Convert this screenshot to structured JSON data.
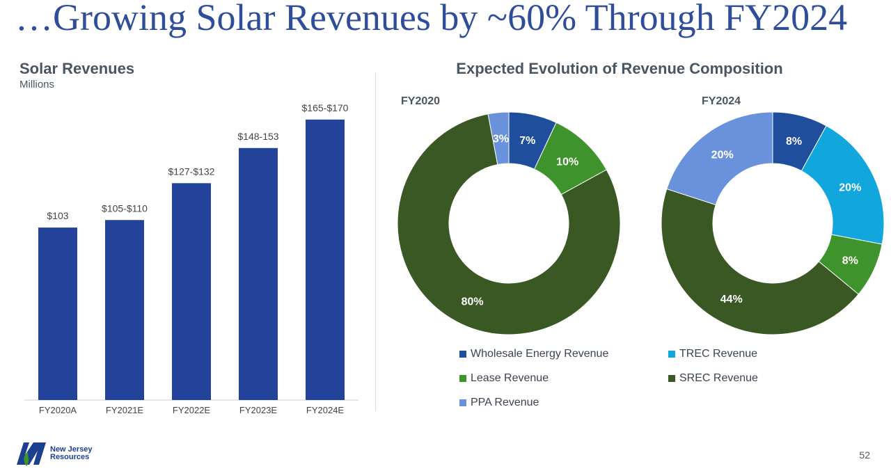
{
  "slide": {
    "title": "…Growing Solar Revenues by ~60% Through FY2024",
    "page_number": "52",
    "logo": {
      "line1": "New Jersey",
      "line2": "Resources"
    }
  },
  "colors": {
    "bar": "#23439a",
    "wholesale": "#1f4e9c",
    "trec": "#12a7dc",
    "lease": "#3f932c",
    "srec": "#3a5823",
    "ppa": "#6a92dc"
  },
  "chart_data": [
    {
      "type": "bar",
      "title": "Solar Revenues",
      "subtitle": "Millions",
      "categories": [
        "FY2020A",
        "FY2021E",
        "FY2022E",
        "FY2023E",
        "FY2024E"
      ],
      "values": [
        103,
        107.5,
        129.5,
        150.5,
        167.5
      ],
      "data_labels": [
        "$103",
        "$105-$110",
        "$127-$132",
        "$148-153",
        "$165-$170"
      ],
      "ylim": [
        0,
        175
      ],
      "grid": false
    },
    {
      "type": "pie",
      "variant": "donut",
      "title": "Expected Evolution of Revenue Composition",
      "chart_label": "FY2020",
      "slices": [
        {
          "name": "Wholesale Energy Revenue",
          "value": 7,
          "label": "7%",
          "color_key": "wholesale"
        },
        {
          "name": "Lease Revenue",
          "value": 10,
          "label": "10%",
          "color_key": "lease"
        },
        {
          "name": "SREC Revenue",
          "value": 80,
          "label": "80%",
          "color_key": "srec"
        },
        {
          "name": "PPA Revenue",
          "value": 3,
          "label": "3%",
          "color_key": "ppa"
        }
      ]
    },
    {
      "type": "pie",
      "variant": "donut",
      "chart_label": "FY2024",
      "slices": [
        {
          "name": "Wholesale Energy Revenue",
          "value": 8,
          "label": "8%",
          "color_key": "wholesale"
        },
        {
          "name": "TREC Revenue",
          "value": 20,
          "label": "20%",
          "color_key": "trec"
        },
        {
          "name": "Lease Revenue",
          "value": 8,
          "label": "8%",
          "color_key": "lease"
        },
        {
          "name": "SREC Revenue",
          "value": 44,
          "label": "44%",
          "color_key": "srec"
        },
        {
          "name": "PPA Revenue",
          "value": 20,
          "label": "20%",
          "color_key": "ppa"
        }
      ]
    }
  ],
  "legend": [
    {
      "label": "Wholesale Energy Revenue",
      "color_key": "wholesale"
    },
    {
      "label": "TREC Revenue",
      "color_key": "trec"
    },
    {
      "label": "Lease Revenue",
      "color_key": "lease"
    },
    {
      "label": "SREC Revenue",
      "color_key": "srec"
    },
    {
      "label": "PPA Revenue",
      "color_key": "ppa"
    }
  ]
}
